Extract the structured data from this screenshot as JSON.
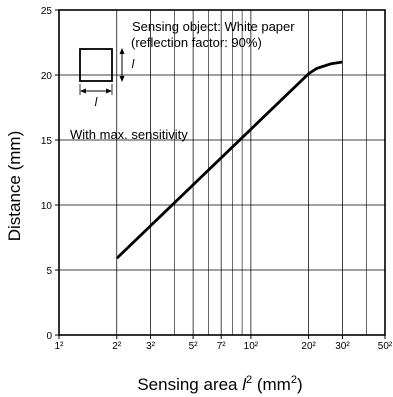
{
  "chart_data": {
    "type": "line",
    "title": "",
    "xlabel_main": "Sensing area ",
    "xlabel_var": "l",
    "xlabel_exp": "2",
    "xlabel_unit_open": " (mm",
    "xlabel_unit_exp": "2",
    "xlabel_unit_close": ")",
    "ylabel": "Distance (mm)",
    "x_scale": "log",
    "xlim": [
      1,
      50
    ],
    "ylim": [
      0,
      25
    ],
    "grid": true,
    "x_ticks": [
      {
        "side": 1,
        "label": "1²"
      },
      {
        "side": 2,
        "label": "2²"
      },
      {
        "side": 3,
        "label": "3²"
      },
      {
        "side": 5,
        "label": "5²"
      },
      {
        "side": 7,
        "label": "7²"
      },
      {
        "side": 10,
        "label": "10²"
      },
      {
        "side": 20,
        "label": "20²"
      },
      {
        "side": 30,
        "label": "30²"
      },
      {
        "side": 50,
        "label": "50²"
      }
    ],
    "x_minor_sides": [
      4,
      6,
      8,
      9,
      40
    ],
    "y_ticks": [
      0,
      5,
      10,
      15,
      20,
      25
    ],
    "series": [
      {
        "points": [
          {
            "x": 2,
            "y": 5.9
          },
          {
            "x": 20,
            "y": 20.1
          },
          {
            "x": 22,
            "y": 20.5
          },
          {
            "x": 26,
            "y": 20.85
          },
          {
            "x": 30,
            "y": 21.0
          }
        ]
      }
    ],
    "annotations": {
      "object_line1": "Sensing object: White paper",
      "object_line2": "(reflection factor: 90%)",
      "sensitivity": "With max. sensitivity",
      "dim_label_side": "l",
      "dim_label_bottom": "l"
    }
  }
}
